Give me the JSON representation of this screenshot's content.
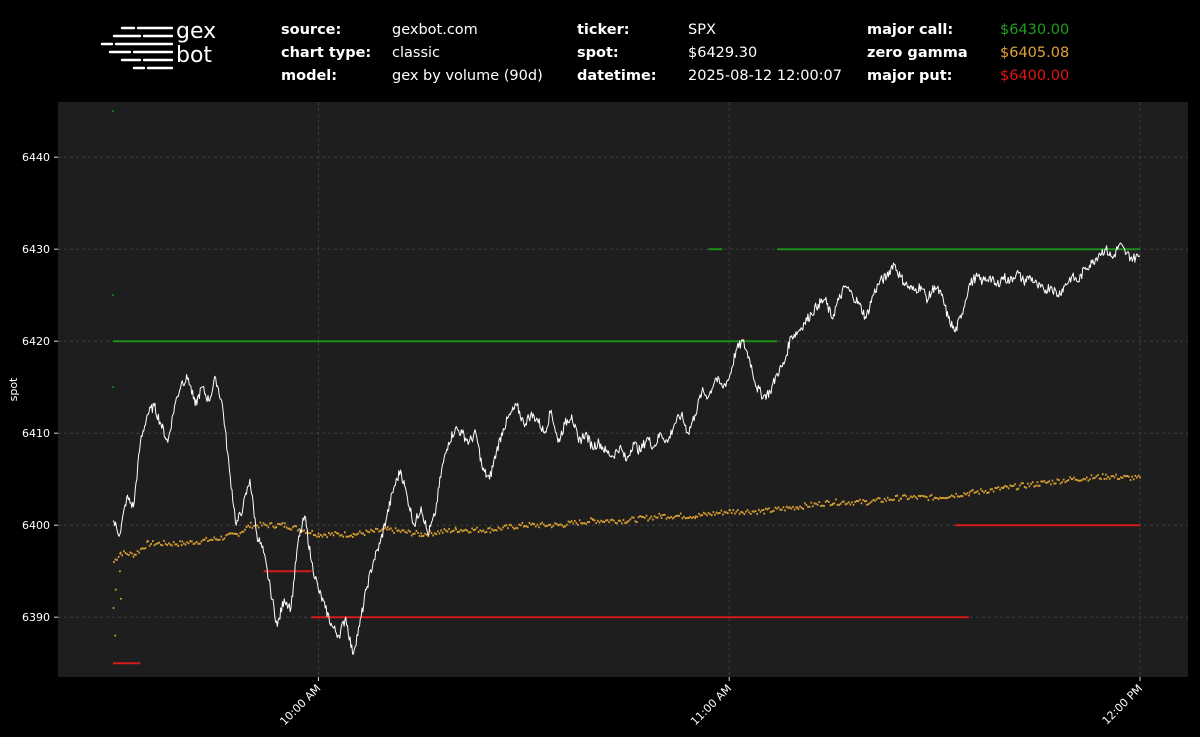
{
  "header": {
    "logo": {
      "line1": "gex",
      "line2": "bot"
    },
    "source": {
      "label": "source:",
      "value": "gexbot.com"
    },
    "chart_type": {
      "label": "chart type:",
      "value": "classic"
    },
    "model": {
      "label": "model:",
      "value": "gex by volume (90d)"
    },
    "ticker": {
      "label": "ticker:",
      "value": "SPX"
    },
    "spot": {
      "label": "spot:",
      "value": "$6429.30"
    },
    "datetime": {
      "label": "datetime:",
      "value": "2025-08-12 12:00:07"
    },
    "major_call": {
      "label": "major call:",
      "value": "$6430.00",
      "color": "#1f9e1f"
    },
    "zero_gamma": {
      "label": "zero gamma",
      "value": "$6405.08",
      "color": "#e2a33b"
    },
    "major_put": {
      "label": "major put:",
      "value": "$6400.00",
      "color": "#e01414"
    }
  },
  "chart_data": {
    "type": "line",
    "ylabel": "spot",
    "xlabel": "",
    "ylim": [
      6383.5,
      6446
    ],
    "y_ticks": [
      6390,
      6400,
      6410,
      6420,
      6430,
      6440
    ],
    "x_range": [
      "09:30",
      "12:00"
    ],
    "x_ticks": [
      {
        "time": "10:00",
        "label": "10:00 AM"
      },
      {
        "time": "11:00",
        "label": "11:00 AM"
      },
      {
        "time": "12:00",
        "label": "12:00 PM"
      }
    ],
    "grid": true,
    "colors": {
      "background": "#1e1e1e",
      "spot": "#ffffff",
      "call": "#1a8f1a",
      "zero": "#d9a030",
      "put": "#d41a1a",
      "grid": "#444444"
    },
    "series": [
      {
        "kind": "spot",
        "points": [
          [
            "09:30",
            6400.5
          ],
          [
            "09:31",
            6399.0
          ],
          [
            "09:32",
            6403.0
          ],
          [
            "09:33",
            6402.0
          ],
          [
            "09:34",
            6409.0
          ],
          [
            "09:35",
            6412.0
          ],
          [
            "09:36",
            6413.0
          ],
          [
            "09:37",
            6411.0
          ],
          [
            "09:38",
            6409.0
          ],
          [
            "09:39",
            6413.0
          ],
          [
            "09:40",
            6415.5
          ],
          [
            "09:41",
            6416.0
          ],
          [
            "09:42",
            6413.0
          ],
          [
            "09:43",
            6415.0
          ],
          [
            "09:44",
            6413.5
          ],
          [
            "09:45",
            6416.0
          ],
          [
            "09:46",
            6413.0
          ],
          [
            "09:47",
            6406.0
          ],
          [
            "09:48",
            6400.0
          ],
          [
            "09:49",
            6402.0
          ],
          [
            "09:50",
            6405.0
          ],
          [
            "09:51",
            6399.0
          ],
          [
            "09:52",
            6397.0
          ],
          [
            "09:53",
            6393.0
          ],
          [
            "09:54",
            6389.0
          ],
          [
            "09:55",
            6392.0
          ],
          [
            "09:56",
            6391.0
          ],
          [
            "09:57",
            6398.0
          ],
          [
            "09:58",
            6401.0
          ],
          [
            "09:59",
            6396.0
          ],
          [
            "10:00",
            6393.0
          ],
          [
            "10:01",
            6391.0
          ],
          [
            "10:02",
            6389.0
          ],
          [
            "10:03",
            6388.0
          ],
          [
            "10:04",
            6390.0
          ],
          [
            "10:05",
            6386.0
          ],
          [
            "10:06",
            6389.0
          ],
          [
            "10:07",
            6393.0
          ],
          [
            "10:08",
            6396.0
          ],
          [
            "10:09",
            6398.0
          ],
          [
            "10:10",
            6401.0
          ],
          [
            "10:11",
            6404.0
          ],
          [
            "10:12",
            6406.0
          ],
          [
            "10:13",
            6403.0
          ],
          [
            "10:14",
            6400.0
          ],
          [
            "10:15",
            6402.0
          ],
          [
            "10:16",
            6399.0
          ],
          [
            "10:17",
            6401.0
          ],
          [
            "10:18",
            6406.0
          ],
          [
            "10:19",
            6409.0
          ],
          [
            "10:20",
            6410.5
          ],
          [
            "10:21",
            6410.0
          ],
          [
            "10:22",
            6409.0
          ],
          [
            "10:23",
            6410.0
          ],
          [
            "10:24",
            6406.0
          ],
          [
            "10:25",
            6405.0
          ],
          [
            "10:26",
            6408.0
          ],
          [
            "10:27",
            6410.5
          ],
          [
            "10:28",
            6412.0
          ],
          [
            "10:29",
            6413.0
          ],
          [
            "10:30",
            6411.0
          ],
          [
            "10:31",
            6412.0
          ],
          [
            "10:32",
            6411.5
          ],
          [
            "10:33",
            6410.0
          ],
          [
            "10:34",
            6412.5
          ],
          [
            "10:35",
            6409.0
          ],
          [
            "10:36",
            6411.0
          ],
          [
            "10:37",
            6412.0
          ],
          [
            "10:38",
            6409.0
          ],
          [
            "10:39",
            6410.0
          ],
          [
            "10:40",
            6408.5
          ],
          [
            "10:41",
            6409.0
          ],
          [
            "10:42",
            6408.0
          ],
          [
            "10:43",
            6407.5
          ],
          [
            "10:44",
            6408.5
          ],
          [
            "10:45",
            6407.0
          ],
          [
            "10:46",
            6409.0
          ],
          [
            "10:47",
            6408.0
          ],
          [
            "10:48",
            6409.5
          ],
          [
            "10:49",
            6408.5
          ],
          [
            "10:50",
            6410.0
          ],
          [
            "10:51",
            6409.0
          ],
          [
            "10:52",
            6411.0
          ],
          [
            "10:53",
            6412.0
          ],
          [
            "10:54",
            6410.0
          ],
          [
            "10:55",
            6412.0
          ],
          [
            "10:56",
            6414.5
          ],
          [
            "10:57",
            6414.0
          ],
          [
            "10:58",
            6416.0
          ],
          [
            "10:59",
            6415.0
          ],
          [
            "11:00",
            6416.0
          ],
          [
            "11:01",
            6419.0
          ],
          [
            "11:02",
            6420.0
          ],
          [
            "11:03",
            6418.0
          ],
          [
            "11:04",
            6415.0
          ],
          [
            "11:05",
            6414.0
          ],
          [
            "11:06",
            6414.5
          ],
          [
            "11:07",
            6416.5
          ],
          [
            "11:08",
            6417.5
          ],
          [
            "11:09",
            6420.5
          ],
          [
            "11:10",
            6421.0
          ],
          [
            "11:11",
            6422.0
          ],
          [
            "11:12",
            6423.0
          ],
          [
            "11:13",
            6424.0
          ],
          [
            "11:14",
            6424.5
          ],
          [
            "11:15",
            6422.5
          ],
          [
            "11:16",
            6424.5
          ],
          [
            "11:17",
            6426.0
          ],
          [
            "11:18",
            6425.0
          ],
          [
            "11:19",
            6424.0
          ],
          [
            "11:20",
            6422.5
          ],
          [
            "11:21",
            6425.0
          ],
          [
            "11:22",
            6426.5
          ],
          [
            "11:23",
            6427.0
          ],
          [
            "11:24",
            6428.5
          ],
          [
            "11:25",
            6427.0
          ],
          [
            "11:26",
            6426.0
          ],
          [
            "11:27",
            6425.5
          ],
          [
            "11:28",
            6426.0
          ],
          [
            "11:29",
            6424.5
          ],
          [
            "11:30",
            6426.0
          ],
          [
            "11:31",
            6425.0
          ],
          [
            "11:32",
            6422.5
          ],
          [
            "11:33",
            6421.0
          ],
          [
            "11:34",
            6423.0
          ],
          [
            "11:35",
            6426.0
          ],
          [
            "11:36",
            6427.0
          ],
          [
            "11:37",
            6426.5
          ],
          [
            "11:38",
            6427.0
          ],
          [
            "11:39",
            6426.0
          ],
          [
            "11:40",
            6427.0
          ],
          [
            "11:41",
            6426.5
          ],
          [
            "11:42",
            6427.5
          ],
          [
            "11:43",
            6426.5
          ],
          [
            "11:44",
            6427.0
          ],
          [
            "11:45",
            6426.0
          ],
          [
            "11:46",
            6425.5
          ],
          [
            "11:47",
            6426.0
          ],
          [
            "11:48",
            6425.0
          ],
          [
            "11:49",
            6426.0
          ],
          [
            "11:50",
            6427.0
          ],
          [
            "11:51",
            6426.5
          ],
          [
            "11:52",
            6428.0
          ],
          [
            "11:53",
            6428.5
          ],
          [
            "11:54",
            6429.5
          ],
          [
            "11:55",
            6430.0
          ],
          [
            "11:56",
            6429.0
          ],
          [
            "11:57",
            6430.5
          ],
          [
            "11:58",
            6429.5
          ],
          [
            "11:59",
            6429.0
          ],
          [
            "12:00",
            6429.3
          ]
        ]
      },
      {
        "kind": "call",
        "segments": [
          {
            "from": "09:30",
            "to": "11:07",
            "value": 6420
          },
          {
            "from": "10:57",
            "to": "10:59",
            "value": 6430
          },
          {
            "from": "11:07",
            "to": "12:00",
            "value": 6430
          }
        ],
        "dots": [
          [
            "09:30",
            6415
          ],
          [
            "09:30",
            6425
          ],
          [
            "09:30",
            6445
          ]
        ]
      },
      {
        "kind": "zero",
        "points": [
          [
            "09:30",
            6396.0
          ],
          [
            "09:31",
            6397.0
          ],
          [
            "09:33",
            6396.8
          ],
          [
            "09:35",
            6398.0
          ],
          [
            "09:40",
            6398.0
          ],
          [
            "09:45",
            6398.5
          ],
          [
            "09:48",
            6399.0
          ],
          [
            "09:50",
            6400.0
          ],
          [
            "09:55",
            6400.0
          ],
          [
            "10:00",
            6399.0
          ],
          [
            "10:05",
            6399.0
          ],
          [
            "10:10",
            6399.5
          ],
          [
            "10:15",
            6399.0
          ],
          [
            "10:20",
            6399.5
          ],
          [
            "10:25",
            6399.5
          ],
          [
            "10:30",
            6400.0
          ],
          [
            "10:35",
            6400.0
          ],
          [
            "10:40",
            6400.5
          ],
          [
            "10:45",
            6400.5
          ],
          [
            "10:50",
            6401.0
          ],
          [
            "10:55",
            6401.0
          ],
          [
            "11:00",
            6401.5
          ],
          [
            "11:05",
            6401.5
          ],
          [
            "11:10",
            6402.0
          ],
          [
            "11:15",
            6402.5
          ],
          [
            "11:20",
            6402.5
          ],
          [
            "11:25",
            6403.0
          ],
          [
            "11:30",
            6403.0
          ],
          [
            "11:35",
            6403.5
          ],
          [
            "11:40",
            6404.0
          ],
          [
            "11:45",
            6404.5
          ],
          [
            "11:50",
            6405.0
          ],
          [
            "11:55",
            6405.3
          ],
          [
            "12:00",
            6405.08
          ]
        ],
        "dots": [
          [
            "09:30",
            6393
          ],
          [
            "09:30",
            6391
          ],
          [
            "09:30",
            6388
          ],
          [
            "09:31",
            6395
          ],
          [
            "09:31",
            6392
          ]
        ]
      },
      {
        "kind": "put",
        "segments": [
          {
            "from": "09:30",
            "to": "09:34",
            "value": 6385
          },
          {
            "from": "09:52",
            "to": "09:59",
            "value": 6395
          },
          {
            "from": "09:59",
            "to": "11:33",
            "value": 6390
          },
          {
            "from": "11:33",
            "to": "11:35",
            "value": 6390
          },
          {
            "from": "11:33",
            "to": "12:00",
            "value": 6400
          }
        ]
      }
    ]
  }
}
